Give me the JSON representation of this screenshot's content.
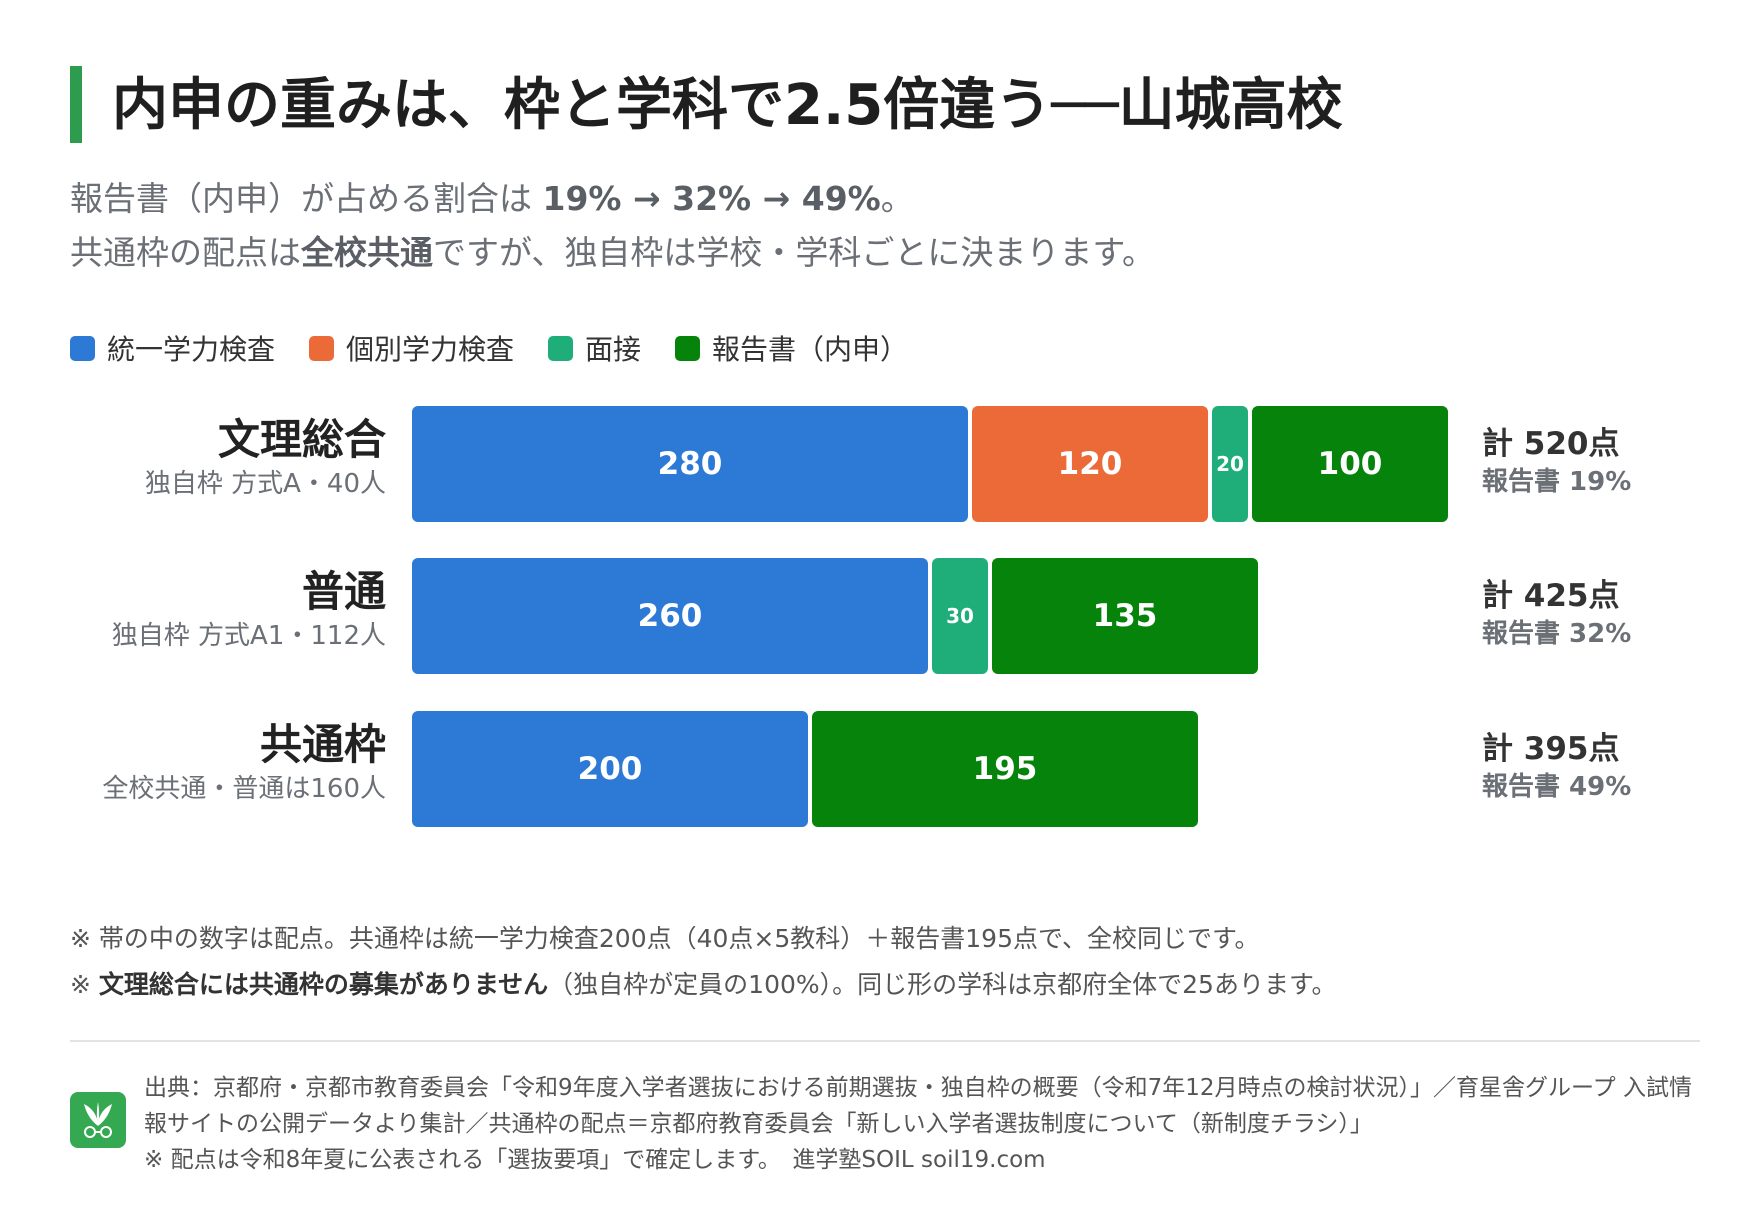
{
  "header": {
    "title": "内申の重みは、枠と学科で2.5倍違う──山城高校",
    "subtitle_line1_text": "報告書（内申）が占める割合は ",
    "subtitle_line1_bold": "19% → 32% → 49%",
    "subtitle_line1_end": "。",
    "subtitle_line2_a": "共通枠の配点は",
    "subtitle_line2_bold": "全校共通",
    "subtitle_line2_b": "ですが、独自枠は学校・学科ごとに決まります。"
  },
  "legend": [
    {
      "label": "統一学力検査",
      "color": "#2d79d6"
    },
    {
      "label": "個別学力検査",
      "color": "#ec6a37"
    },
    {
      "label": "面接",
      "color": "#1fae79"
    },
    {
      "label": "報告書（内申）",
      "color": "#05830a"
    }
  ],
  "chart_data": {
    "type": "bar",
    "orientation": "horizontal-stacked",
    "categories": [
      "文理総合",
      "普通",
      "共通枠"
    ],
    "category_subtitles": [
      "独自枠 方式A・40人",
      "独自枠 方式A1・112人",
      "全校共通・普通は160人"
    ],
    "series": [
      {
        "name": "統一学力検査",
        "color": "#2d79d6",
        "values": [
          280,
          260,
          200
        ]
      },
      {
        "name": "個別学力検査",
        "color": "#ec6a37",
        "values": [
          120,
          0,
          0
        ]
      },
      {
        "name": "面接",
        "color": "#1fae79",
        "values": [
          20,
          30,
          0
        ]
      },
      {
        "name": "報告書（内申）",
        "color": "#05830a",
        "values": [
          100,
          135,
          195
        ]
      }
    ],
    "totals": [
      "計 520点",
      "計 425点",
      "計 395点"
    ],
    "report_shares": [
      "報告書 19%",
      "報告書 32%",
      "報告書 49%"
    ],
    "xlim": [
      0,
      520
    ]
  },
  "notes": {
    "line1": "※ 帯の中の数字は配点。共通枠は統一学力検査200点（40点×5教科）＋報告書195点で、全校同じです。",
    "line2_prefix": "※ ",
    "line2_bold": "文理総合には共通枠の募集がありません",
    "line2_rest": "（独自枠が定員の100%）。同じ形の学科は京都府全体で25あります。"
  },
  "source": {
    "line1": "出典：京都府・京都市教育委員会「令和9年度入学者選抜における前期選抜・独自枠の概要（令和7年12月時点の検討状況）」／育星舎グループ 入試情",
    "line2": "報サイトの公開データより集計／共通枠の配点＝京都府教育委員会「新しい入学者選抜制度について（新制度チラシ）」",
    "line3": "※ 配点は令和8年夏に公表される「選抜要項」で確定します。　進学塾SOIL soil19.com",
    "logo_icon": "sprout-glasses-icon"
  }
}
